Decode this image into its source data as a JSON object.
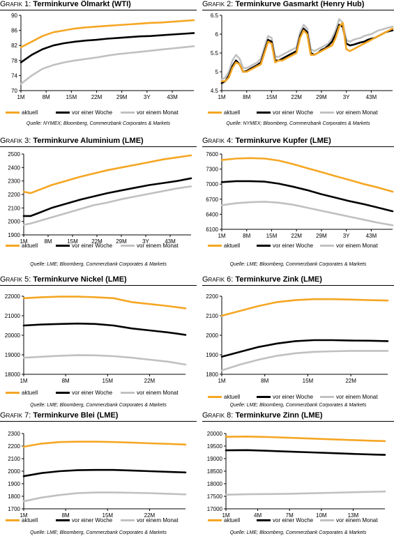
{
  "colors": {
    "aktuell": "#F5A623",
    "woche": "#000000",
    "monat": "#C0C0C0"
  },
  "legend_labels": [
    "aktuell",
    "vor einer Woche",
    "vor einem Monat"
  ],
  "panels": [
    {
      "prefix": "Grafik 1:",
      "title": "Terminkurve Ölmarkt (WTI)",
      "source": "Quelle: NYMEX; Bloomberg, Commerzbank Corporates & Markets",
      "chart_data": {
        "type": "line",
        "x_ticks": [
          "1M",
          "8M",
          "15M",
          "22M",
          "29M",
          "3Y",
          "43M"
        ],
        "y_ticks": [
          70,
          74,
          78,
          82,
          86,
          90
        ],
        "ylim": [
          70,
          90
        ],
        "x": [
          0,
          3,
          6,
          9,
          12,
          15,
          18,
          21,
          24,
          27,
          30,
          33,
          36,
          39,
          42,
          45,
          48
        ],
        "series": [
          {
            "name": "aktuell",
            "values": [
              81.5,
              83,
              84.5,
              85.5,
              86,
              86.5,
              86.8,
              87,
              87.2,
              87.4,
              87.6,
              87.8,
              88,
              88.1,
              88.3,
              88.5,
              88.7
            ]
          },
          {
            "name": "vor einer Woche",
            "values": [
              77.5,
              79.5,
              81,
              82,
              82.6,
              83,
              83.3,
              83.5,
              83.8,
              84,
              84.2,
              84.4,
              84.5,
              84.7,
              84.9,
              85.1,
              85.3
            ]
          },
          {
            "name": "vor einem Monat",
            "values": [
              71.8,
              74,
              75.8,
              76.8,
              77.5,
              78,
              78.4,
              78.8,
              79.3,
              79.7,
              80,
              80.3,
              80.6,
              80.9,
              81.2,
              81.5,
              81.8
            ]
          }
        ]
      }
    },
    {
      "prefix": "Grafik 2:",
      "title": "Terminkurve Gasmarkt (Henry Hub)",
      "source": "Quelle: NYMEX; Bloomberg, Commerzbank Corporates & Markets",
      "chart_data": {
        "type": "line",
        "x_ticks": [
          "1M",
          "8M",
          "15M",
          "22M",
          "29M",
          "3Y",
          "43M"
        ],
        "y_ticks": [
          4.5,
          5.0,
          5.5,
          6.0,
          6.5
        ],
        "ylim": [
          4.5,
          6.5
        ],
        "x": [
          0,
          1,
          2,
          3,
          4,
          5,
          6,
          7,
          8,
          9,
          10,
          11,
          12,
          13,
          14,
          15,
          16,
          17,
          18,
          19,
          20,
          21,
          22,
          23,
          24,
          25,
          26,
          27,
          28,
          29,
          30,
          31,
          32,
          33,
          34,
          35,
          36,
          37,
          38,
          39,
          40,
          41,
          42,
          43,
          44,
          45,
          46,
          47,
          48
        ],
        "series": [
          {
            "name": "aktuell",
            "values": [
              4.75,
              4.75,
              4.85,
              5.1,
              5.25,
              5.2,
              5.0,
              5.0,
              5.05,
              5.1,
              5.15,
              5.2,
              5.5,
              5.8,
              5.75,
              5.25,
              5.3,
              5.3,
              5.35,
              5.4,
              5.45,
              5.5,
              5.9,
              6.1,
              6.0,
              5.45,
              5.45,
              5.5,
              5.55,
              5.6,
              5.65,
              5.7,
              5.9,
              6.2,
              6.3,
              5.6,
              5.55,
              5.6,
              5.65,
              5.7,
              5.75,
              5.8,
              5.85,
              5.9,
              5.95,
              6.0,
              6.05,
              6.1,
              6.15
            ]
          },
          {
            "name": "vor einer Woche",
            "values": [
              4.7,
              4.75,
              4.9,
              5.15,
              5.3,
              5.2,
              5.0,
              5.02,
              5.08,
              5.13,
              5.18,
              5.25,
              5.55,
              5.85,
              5.8,
              5.3,
              5.3,
              5.35,
              5.4,
              5.45,
              5.5,
              5.55,
              5.95,
              6.15,
              6.05,
              5.5,
              5.45,
              5.5,
              5.58,
              5.62,
              5.7,
              5.8,
              6.0,
              6.25,
              6.2,
              5.75,
              5.7,
              5.72,
              5.75,
              5.78,
              5.8,
              5.85,
              5.88,
              5.9,
              5.95,
              6.0,
              6.05,
              6.08,
              6.1
            ]
          },
          {
            "name": "vor einem Monat",
            "values": [
              4.8,
              4.85,
              5.0,
              5.3,
              5.45,
              5.35,
              5.1,
              5.1,
              5.15,
              5.2,
              5.25,
              5.35,
              5.65,
              5.95,
              5.9,
              5.4,
              5.4,
              5.45,
              5.5,
              5.55,
              5.6,
              5.65,
              6.05,
              6.25,
              6.15,
              5.6,
              5.55,
              5.6,
              5.65,
              5.7,
              5.75,
              5.9,
              6.1,
              6.4,
              6.3,
              5.85,
              5.8,
              5.85,
              5.88,
              5.9,
              5.95,
              5.98,
              6.0,
              6.05,
              6.1,
              6.12,
              6.15,
              6.18,
              6.2
            ]
          }
        ]
      }
    },
    {
      "prefix": "Grafik 3:",
      "title": "Terminkurve Aluminium (LME)",
      "source": "Quelle: LME; Bloomberg, Commerzbank Corporates & Markets",
      "chart_data": {
        "type": "line",
        "x_ticks": [
          "1M",
          "8M",
          "15M",
          "22M",
          "29M",
          "3Y",
          "43M"
        ],
        "y_ticks": [
          1900,
          2000,
          2100,
          2200,
          2300,
          2400,
          2500
        ],
        "ylim": [
          1900,
          2500
        ],
        "x": [
          0,
          2,
          4,
          8,
          12,
          16,
          20,
          24,
          28,
          32,
          36,
          40,
          44,
          48
        ],
        "series": [
          {
            "name": "aktuell",
            "values": [
              2220,
              2210,
              2230,
              2270,
              2300,
              2330,
              2355,
              2380,
              2400,
              2420,
              2440,
              2460,
              2475,
              2490
            ]
          },
          {
            "name": "vor einer Woche",
            "values": [
              2040,
              2040,
              2060,
              2100,
              2130,
              2160,
              2185,
              2210,
              2230,
              2250,
              2270,
              2285,
              2300,
              2320
            ]
          },
          {
            "name": "vor einem Monat",
            "values": [
              1975,
              1985,
              2000,
              2030,
              2060,
              2090,
              2120,
              2140,
              2165,
              2185,
              2205,
              2225,
              2245,
              2260
            ]
          }
        ]
      }
    },
    {
      "prefix": "Grafik 4:",
      "title": "Terminkurve Kupfer (LME)",
      "source": "Quelle: LME; Bloomberg, Commerzbank Corporates & Markets",
      "chart_data": {
        "type": "line",
        "x_ticks": [
          "1M",
          "8M",
          "15M",
          "22M",
          "29M",
          "3Y",
          "43M"
        ],
        "y_ticks": [
          6100,
          6400,
          6700,
          7000,
          7300,
          7600
        ],
        "ylim": [
          6100,
          7600
        ],
        "x": [
          0,
          4,
          8,
          12,
          16,
          20,
          24,
          28,
          32,
          36,
          40,
          44,
          48
        ],
        "series": [
          {
            "name": "aktuell",
            "values": [
              7480,
              7510,
              7520,
              7510,
              7470,
              7400,
              7320,
              7240,
              7160,
              7080,
              7000,
              6930,
              6850
            ]
          },
          {
            "name": "vor einer Woche",
            "values": [
              7040,
              7060,
              7060,
              7050,
              7010,
              6950,
              6880,
              6800,
              6730,
              6660,
              6600,
              6530,
              6460
            ]
          },
          {
            "name": "vor einem Monat",
            "values": [
              6580,
              6620,
              6640,
              6650,
              6630,
              6590,
              6530,
              6470,
              6410,
              6350,
              6290,
              6230,
              6180
            ]
          }
        ]
      }
    },
    {
      "prefix": "Grafik 5:",
      "title": "Terminkurve Nickel (LME)",
      "source": "Quelle: LME; Bloomberg, Commerzbank Corporates & Markets",
      "chart_data": {
        "type": "line",
        "x_ticks": [
          "1M",
          "8M",
          "15M",
          "22M"
        ],
        "y_ticks": [
          18000,
          19000,
          20000,
          21000,
          22000
        ],
        "ylim": [
          18000,
          22000
        ],
        "x": [
          0,
          3,
          6,
          9,
          12,
          15,
          18,
          21,
          24,
          27
        ],
        "series": [
          {
            "name": "aktuell",
            "values": [
              21900,
              21950,
              21980,
              21980,
              21950,
              21900,
              21700,
              21600,
              21500,
              21380
            ]
          },
          {
            "name": "vor einer Woche",
            "values": [
              20500,
              20550,
              20580,
              20600,
              20580,
              20500,
              20350,
              20250,
              20150,
              20020
            ]
          },
          {
            "name": "vor einem Monat",
            "values": [
              18850,
              18900,
              18950,
              18980,
              18970,
              18930,
              18850,
              18750,
              18650,
              18500
            ]
          }
        ]
      }
    },
    {
      "prefix": "Grafik 6:",
      "title": "Terminkurve Zink (LME)",
      "source": "Quelle: LME; Bloomberg, Commerzbank Corporates & Markets",
      "chart_data": {
        "type": "line",
        "x_ticks": [
          "1M",
          "8M",
          "15M",
          "22M"
        ],
        "y_ticks": [
          1800,
          1900,
          2000,
          2100,
          2200
        ],
        "ylim": [
          1800,
          2200
        ],
        "x": [
          0,
          3,
          6,
          9,
          12,
          15,
          18,
          21,
          24,
          27
        ],
        "series": [
          {
            "name": "aktuell",
            "values": [
              2100,
              2125,
              2150,
              2170,
              2180,
              2185,
              2185,
              2183,
              2180,
              2178
            ]
          },
          {
            "name": "vor einer Woche",
            "values": [
              1890,
              1915,
              1940,
              1958,
              1970,
              1975,
              1975,
              1973,
              1972,
              1970
            ]
          },
          {
            "name": "vor einem Monat",
            "values": [
              1820,
              1850,
              1875,
              1895,
              1908,
              1915,
              1918,
              1920,
              1920,
              1920
            ]
          }
        ]
      }
    },
    {
      "prefix": "Grafik 7:",
      "title": "Terminkurve Blei (LME)",
      "source": "Quelle: LME; Bloomberg, Commerzbank Corporates & Markets",
      "chart_data": {
        "type": "line",
        "x_ticks": [
          "1M",
          "8M",
          "15M",
          "22M"
        ],
        "y_ticks": [
          1700,
          1800,
          1900,
          2000,
          2100,
          2200,
          2300
        ],
        "ylim": [
          1700,
          2300
        ],
        "x": [
          0,
          3,
          6,
          9,
          12,
          15,
          18,
          21,
          24,
          27
        ],
        "series": [
          {
            "name": "aktuell",
            "values": [
              2195,
              2220,
              2232,
              2235,
              2235,
              2232,
              2228,
              2222,
              2218,
              2212
            ]
          },
          {
            "name": "vor einer Woche",
            "values": [
              1960,
              1985,
              2000,
              2008,
              2010,
              2010,
              2005,
              2000,
              1995,
              1990
            ]
          },
          {
            "name": "vor einem Monat",
            "values": [
              1760,
              1790,
              1810,
              1825,
              1830,
              1830,
              1828,
              1825,
              1820,
              1815
            ]
          }
        ]
      }
    },
    {
      "prefix": "Grafik 8:",
      "title": "Terminkurve Zinn (LME)",
      "source": "Quelle: LME; Bloomberg, Commerzbank Corporates & Markets",
      "chart_data": {
        "type": "line",
        "x_ticks": [
          "1M",
          "4M",
          "7M",
          "10M",
          "13M"
        ],
        "y_ticks": [
          17000,
          17500,
          18000,
          18500,
          19000,
          19500,
          20000
        ],
        "ylim": [
          17000,
          20000
        ],
        "x": [
          0,
          2,
          4,
          6,
          8,
          10,
          12,
          14,
          15
        ],
        "series": [
          {
            "name": "aktuell",
            "values": [
              19870,
              19880,
              19860,
              19830,
              19800,
              19770,
              19740,
              19710,
              19700
            ]
          },
          {
            "name": "vor einer Woche",
            "values": [
              19330,
              19340,
              19310,
              19280,
              19250,
              19220,
              19190,
              19160,
              19150
            ]
          },
          {
            "name": "vor einem Monat",
            "values": [
              17560,
              17580,
              17590,
              17600,
              17620,
              17640,
              17660,
              17680,
              17690
            ]
          }
        ]
      }
    }
  ]
}
